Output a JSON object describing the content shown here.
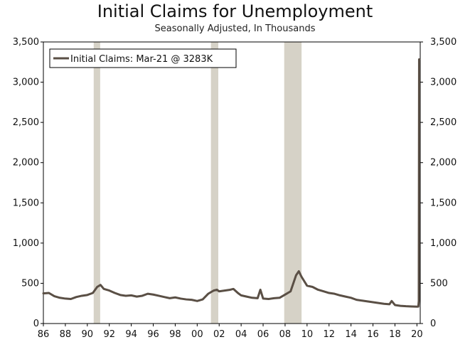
{
  "chart_data": {
    "type": "line",
    "title": "Initial Claims for Unemployment",
    "subtitle": "Seasonally Adjusted, In Thousands",
    "xlabel": "",
    "ylabel": "",
    "ylim": [
      0,
      3500
    ],
    "xlim": [
      1986.0,
      2020.3
    ],
    "yticks": [
      0,
      500,
      1000,
      1500,
      2000,
      2500,
      3000,
      3500
    ],
    "ytick_labels": [
      "0",
      "500",
      "1,000",
      "1,500",
      "2,000",
      "2,500",
      "3,000",
      "3,500"
    ],
    "xticks": [
      1986,
      1988,
      1990,
      1992,
      1994,
      1996,
      1998,
      2000,
      2002,
      2004,
      2006,
      2008,
      2010,
      2012,
      2014,
      2016,
      2018,
      2020
    ],
    "xtick_labels": [
      "86",
      "88",
      "90",
      "92",
      "94",
      "96",
      "98",
      "00",
      "02",
      "04",
      "06",
      "08",
      "10",
      "12",
      "14",
      "16",
      "18",
      "20"
    ],
    "grid": false,
    "legend_position": "top-left",
    "line_color": "#5a4f45",
    "recession_color": "#d6d2c7",
    "recessions": [
      [
        1990.58,
        1991.17
      ],
      [
        2001.25,
        2001.92
      ],
      [
        2007.92,
        2009.5
      ]
    ],
    "series": [
      {
        "name": "Initial Claims: Mar-21 @ 3283K",
        "x": [
          1986.0,
          1986.5,
          1987.0,
          1987.5,
          1988.0,
          1988.5,
          1989.0,
          1989.5,
          1990.0,
          1990.5,
          1990.9,
          1991.2,
          1991.5,
          1992.0,
          1992.5,
          1993.0,
          1993.5,
          1994.0,
          1994.5,
          1995.0,
          1995.5,
          1996.0,
          1996.5,
          1997.0,
          1997.5,
          1998.0,
          1998.5,
          1999.0,
          1999.5,
          2000.0,
          2000.5,
          2001.0,
          2001.5,
          2001.8,
          2002.0,
          2002.5,
          2003.0,
          2003.3,
          2003.7,
          2004.0,
          2004.5,
          2005.0,
          2005.5,
          2005.75,
          2006.0,
          2006.5,
          2007.0,
          2007.5,
          2008.0,
          2008.5,
          2009.0,
          2009.25,
          2009.5,
          2010.0,
          2010.5,
          2011.0,
          2011.5,
          2012.0,
          2012.5,
          2013.0,
          2013.5,
          2014.0,
          2014.5,
          2015.0,
          2015.5,
          2016.0,
          2016.5,
          2017.0,
          2017.5,
          2017.7,
          2018.0,
          2018.5,
          2019.0,
          2019.5,
          2020.0,
          2020.13,
          2020.17,
          2020.2,
          2020.22
        ],
        "values": [
          375,
          380,
          340,
          320,
          310,
          305,
          330,
          345,
          355,
          380,
          455,
          480,
          430,
          410,
          380,
          355,
          345,
          350,
          335,
          345,
          370,
          360,
          345,
          330,
          315,
          325,
          310,
          300,
          295,
          280,
          300,
          370,
          410,
          420,
          400,
          410,
          420,
          430,
          380,
          350,
          335,
          320,
          315,
          420,
          310,
          305,
          315,
          320,
          360,
          400,
          600,
          650,
          580,
          470,
          455,
          420,
          400,
          380,
          370,
          350,
          335,
          320,
          295,
          285,
          275,
          265,
          255,
          245,
          240,
          280,
          230,
          220,
          215,
          212,
          210,
          211,
          281,
          3283,
          3283
        ]
      }
    ]
  }
}
